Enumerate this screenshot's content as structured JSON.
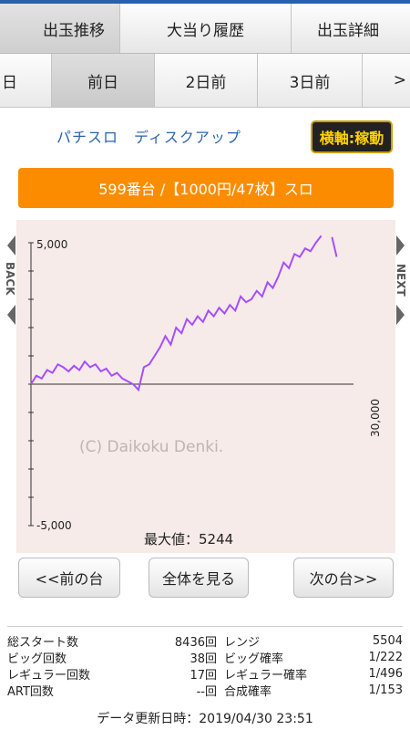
{
  "tabs": [
    "出玉推移",
    "大当り履歴",
    "出玉詳細"
  ],
  "days": [
    "日",
    "前日",
    "2日前",
    "3日前",
    ">"
  ],
  "machine_name": "パチスロ　ディスクアップ",
  "axis_button": "横軸:稼動",
  "banner": "599番台 /【1000円/47枚】スロ",
  "chart_data": {
    "type": "line",
    "y_ticks": [
      "5,000",
      "-5,000"
    ],
    "x_tick": "30,000",
    "ylim": [
      -5000,
      5000
    ],
    "xlim": [
      0,
      30000
    ],
    "watermark": "(C) Daikoku Denki.",
    "max_label": "最大値：5244",
    "nav_back": "BACK",
    "nav_next": "NEXT",
    "series": [
      {
        "color": "#a64dff",
        "x": [
          0,
          500,
          1000,
          1500,
          2000,
          2500,
          3000,
          3500,
          4000,
          4500,
          5000,
          5500,
          6000,
          6500,
          7000,
          7500,
          8000,
          8500,
          9000,
          9500,
          10000,
          10500,
          11000,
          11500,
          12000,
          12500,
          13000,
          13500,
          14000,
          14500,
          15000,
          15500,
          16000,
          16500,
          17000,
          17500,
          18000,
          18500,
          19000,
          19500,
          20000,
          20500,
          21000,
          21500,
          22000,
          22500,
          23000,
          23500,
          24000,
          24500,
          25000,
          25500,
          26000,
          26500,
          27000,
          27500,
          28000,
          28436
        ],
        "y": [
          0,
          300,
          200,
          500,
          400,
          700,
          600,
          450,
          650,
          500,
          800,
          600,
          700,
          450,
          550,
          300,
          400,
          200,
          100,
          0,
          -200,
          600,
          700,
          1000,
          1300,
          1700,
          1400,
          2000,
          1800,
          2300,
          2100,
          2400,
          2200,
          2600,
          2400,
          2700,
          2500,
          2800,
          2600,
          3100,
          2900,
          3000,
          3300,
          3100,
          3600,
          3400,
          3800,
          4300,
          4100,
          4600,
          4500,
          4800,
          4700,
          5000,
          5244,
          null,
          5200,
          4500
        ]
      }
    ]
  },
  "buttons": {
    "prev": "<<前の台",
    "all": "全体を見る",
    "next": "次の台>>"
  },
  "stats": [
    {
      "l1": "総スタート数",
      "v1": "8436回",
      "l2": "レンジ",
      "v2": "5504"
    },
    {
      "l1": "ビッグ回数",
      "v1": "38回",
      "l2": "ビッグ確率",
      "v2": "1/222"
    },
    {
      "l1": "レギュラー回数",
      "v1": "17回",
      "l2": "レギュラー確率",
      "v2": "1/496"
    },
    {
      "l1": "ART回数",
      "v1": "--回",
      "l2": "合成確率",
      "v2": "1/153"
    }
  ],
  "update": "データ更新日時：2019/04/30 23:51"
}
